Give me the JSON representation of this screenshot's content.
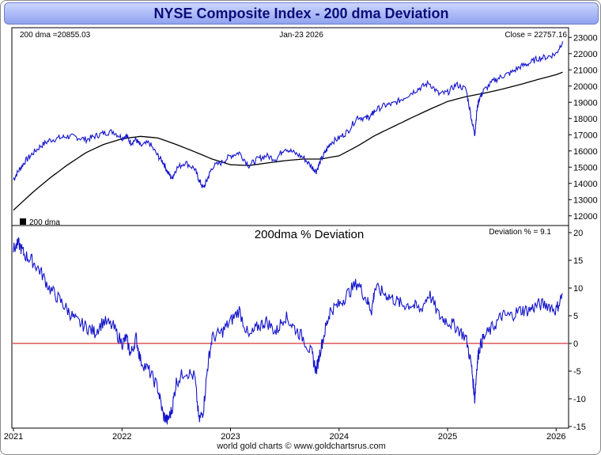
{
  "title": "NYSE Composite Index - 200 dma Deviation",
  "footer": "world gold charts © www.goldchartsrus.com",
  "colors": {
    "price": "#1414cc",
    "ma": "#000000",
    "zero_line": "#cc0000",
    "title_text": "#0c0c7a"
  },
  "chart_data": [
    {
      "type": "line",
      "panel": "price",
      "header_left": "200 dma =20855.03",
      "header_center": "Jan-23  2026",
      "header_right": "Close = 22757.16",
      "legend": "200 dma",
      "ylim": [
        11500,
        23500
      ],
      "yticks": [
        "23000",
        "22000",
        "21000",
        "20000",
        "19000",
        "18000",
        "17000",
        "16000",
        "15000",
        "14000",
        "13000",
        "12000"
      ],
      "ytick_values": [
        23000,
        22000,
        21000,
        20000,
        19000,
        18000,
        17000,
        16000,
        15000,
        14000,
        13000,
        12000
      ],
      "series": [
        {
          "name": "NYSE Composite",
          "x": [
            2021.0,
            2021.05,
            2021.1,
            2021.17,
            2021.25,
            2021.33,
            2021.42,
            2021.5,
            2021.58,
            2021.67,
            2021.75,
            2021.83,
            2021.92,
            2022.0,
            2022.04,
            2022.08,
            2022.13,
            2022.17,
            2022.25,
            2022.33,
            2022.38,
            2022.42,
            2022.46,
            2022.5,
            2022.58,
            2022.67,
            2022.71,
            2022.75,
            2022.79,
            2022.83,
            2022.92,
            2023.0,
            2023.08,
            2023.17,
            2023.25,
            2023.33,
            2023.42,
            2023.5,
            2023.58,
            2023.67,
            2023.75,
            2023.79,
            2023.83,
            2023.88,
            2023.92,
            2024.0,
            2024.08,
            2024.17,
            2024.25,
            2024.3,
            2024.33,
            2024.42,
            2024.5,
            2024.58,
            2024.67,
            2024.75,
            2024.83,
            2024.92,
            2025.0,
            2025.08,
            2025.17,
            2025.22,
            2025.25,
            2025.27,
            2025.29,
            2025.33,
            2025.42,
            2025.5,
            2025.58,
            2025.67,
            2025.75,
            2025.83,
            2025.92,
            2026.0,
            2026.06
          ],
          "values": [
            14250,
            14800,
            15300,
            15800,
            16300,
            16650,
            16800,
            16900,
            16850,
            16700,
            16900,
            17100,
            17200,
            16800,
            16950,
            16500,
            16700,
            16300,
            16500,
            15700,
            15300,
            14700,
            14300,
            14900,
            15300,
            14900,
            14200,
            13700,
            14300,
            15000,
            15300,
            15700,
            15900,
            15100,
            15500,
            15700,
            15500,
            16200,
            15900,
            15600,
            15000,
            14750,
            15400,
            16000,
            16500,
            16800,
            17200,
            18100,
            18000,
            18200,
            18500,
            18800,
            18900,
            19200,
            19600,
            19900,
            20200,
            19500,
            19600,
            20100,
            19800,
            18000,
            17000,
            18500,
            19200,
            19700,
            20300,
            20600,
            20800,
            21200,
            21400,
            21700,
            21800,
            22000,
            22760
          ]
        },
        {
          "name": "200 dma",
          "x": [
            2021.0,
            2021.17,
            2021.33,
            2021.5,
            2021.67,
            2021.83,
            2022.0,
            2022.17,
            2022.33,
            2022.5,
            2022.67,
            2022.83,
            2023.0,
            2023.17,
            2023.33,
            2023.5,
            2023.67,
            2023.83,
            2024.0,
            2024.17,
            2024.33,
            2024.5,
            2024.67,
            2024.83,
            2025.0,
            2025.17,
            2025.33,
            2025.5,
            2025.67,
            2025.83,
            2026.0,
            2026.06
          ],
          "values": [
            12350,
            13400,
            14300,
            15150,
            15900,
            16400,
            16750,
            16900,
            16800,
            16400,
            15950,
            15500,
            15150,
            15100,
            15250,
            15400,
            15500,
            15500,
            15700,
            16300,
            16950,
            17500,
            18050,
            18550,
            19050,
            19350,
            19550,
            19800,
            20100,
            20400,
            20700,
            20855
          ]
        }
      ]
    },
    {
      "type": "line",
      "panel": "deviation",
      "title": "200dma  %  Deviation",
      "header_right": "Deviation % = 9.1",
      "ylim": [
        -15,
        21
      ],
      "yticks": [
        "20",
        "15",
        "10",
        "5",
        "0",
        "-5",
        "-10",
        "-15"
      ],
      "ytick_values": [
        20,
        15,
        10,
        5,
        0,
        -5,
        -10,
        -15
      ],
      "xlabels": [
        "2021",
        "2022",
        "2023",
        "2024",
        "2025",
        "2026"
      ],
      "xlabel_values": [
        2021,
        2022,
        2023,
        2024,
        2025,
        2026
      ],
      "zero_line": 0,
      "series": [
        {
          "name": "Deviation %",
          "x": [
            2021.0,
            2021.05,
            2021.1,
            2021.17,
            2021.25,
            2021.33,
            2021.42,
            2021.5,
            2021.58,
            2021.67,
            2021.75,
            2021.83,
            2021.92,
            2022.0,
            2022.04,
            2022.08,
            2022.13,
            2022.17,
            2022.25,
            2022.33,
            2022.38,
            2022.42,
            2022.46,
            2022.5,
            2022.58,
            2022.67,
            2022.71,
            2022.75,
            2022.79,
            2022.83,
            2022.92,
            2023.0,
            2023.08,
            2023.17,
            2023.25,
            2023.33,
            2023.42,
            2023.5,
            2023.58,
            2023.67,
            2023.75,
            2023.79,
            2023.83,
            2023.88,
            2023.92,
            2024.0,
            2024.08,
            2024.17,
            2024.25,
            2024.3,
            2024.33,
            2024.42,
            2024.5,
            2024.58,
            2024.67,
            2024.75,
            2024.83,
            2024.92,
            2025.0,
            2025.08,
            2025.17,
            2025.22,
            2025.25,
            2025.27,
            2025.29,
            2025.33,
            2025.42,
            2025.5,
            2025.58,
            2025.67,
            2025.75,
            2025.83,
            2025.92,
            2026.0,
            2026.06
          ],
          "values": [
            17,
            18,
            16,
            15,
            13,
            10,
            8,
            6,
            4,
            3,
            2,
            4,
            3,
            0,
            1,
            -2,
            1,
            -3,
            -5,
            -8,
            -13,
            -14,
            -12,
            -7,
            -5,
            -6,
            -14,
            -12,
            -4,
            1,
            2,
            4,
            6,
            1,
            3,
            4,
            2,
            5,
            3,
            1,
            -2,
            -5,
            -1,
            3,
            6,
            7,
            9,
            11,
            8,
            6,
            10,
            9,
            8,
            7,
            7,
            6,
            9,
            5,
            4,
            3,
            1,
            -4,
            -10,
            -4,
            -1,
            1,
            3,
            5,
            5,
            6,
            6,
            7,
            7,
            6,
            9
          ]
        }
      ]
    }
  ]
}
